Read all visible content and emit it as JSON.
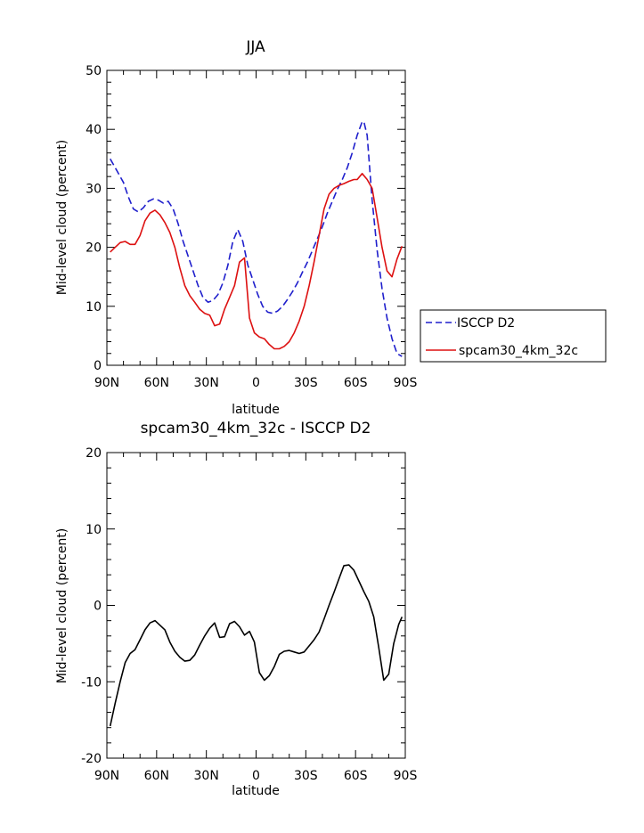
{
  "chart_data": [
    {
      "type": "line",
      "title": "JJA",
      "xlabel": "latitude",
      "ylabel": "Mid-level cloud (percent)",
      "xlim": [
        90,
        -90
      ],
      "ylim": [
        0,
        50
      ],
      "xticks": [
        {
          "value": 90,
          "label": "90N"
        },
        {
          "value": 60,
          "label": "60N"
        },
        {
          "value": 30,
          "label": "30N"
        },
        {
          "value": 0,
          "label": "0"
        },
        {
          "value": -30,
          "label": "30S"
        },
        {
          "value": -60,
          "label": "60S"
        },
        {
          "value": -90,
          "label": "90S"
        }
      ],
      "yticks": [
        0,
        10,
        20,
        30,
        40,
        50
      ],
      "grid": false,
      "legend": "outside-right",
      "series": [
        {
          "name": "ISCCP D2",
          "color": "#1f1fcc",
          "dash": true,
          "x": [
            88,
            84,
            80,
            77,
            74,
            71,
            68,
            65,
            62,
            59,
            56,
            53,
            50,
            47,
            44,
            41,
            38,
            35,
            32,
            29,
            26,
            23,
            20,
            17,
            14,
            11,
            8,
            5,
            2,
            -1,
            -4,
            -7,
            -10,
            -13,
            -16,
            -19,
            -22,
            -25,
            -28,
            -31,
            -34,
            -37,
            -40,
            -43,
            -46,
            -49,
            -52,
            -55,
            -58,
            -61,
            -64,
            -65,
            -67,
            -70,
            -73,
            -76,
            -79,
            -82,
            -85,
            -88
          ],
          "y": [
            35,
            33,
            31,
            28.5,
            26.5,
            26,
            26.7,
            27.8,
            28.2,
            28,
            27.5,
            27.8,
            26.5,
            24,
            21,
            18.5,
            16,
            13.5,
            11.5,
            10.7,
            11,
            12,
            14,
            17,
            21,
            23,
            21,
            17,
            14.5,
            12,
            10,
            9,
            8.8,
            9.2,
            10,
            11.2,
            12.5,
            14,
            15.8,
            17.5,
            19.5,
            21.5,
            23.5,
            25.8,
            27.8,
            29.8,
            31.5,
            33.5,
            36,
            39,
            41.3,
            41.3,
            39,
            28,
            19.5,
            13,
            8,
            4.5,
            2,
            1.5
          ]
        },
        {
          "name": "spcam30_4km_32c",
          "color": "#dd1111",
          "dash": false,
          "x": [
            88,
            85,
            82,
            79,
            76,
            73,
            70,
            67,
            64,
            61,
            58,
            55,
            52,
            49,
            46,
            43,
            40,
            37,
            34,
            31,
            28,
            25,
            22,
            19,
            16,
            13,
            10,
            7,
            4,
            1,
            -2,
            -5,
            -8,
            -11,
            -14,
            -17,
            -20,
            -23,
            -26,
            -29,
            -32,
            -35,
            -38,
            -41,
            -44,
            -47,
            -50,
            -53,
            -56,
            -59,
            -61,
            -64,
            -67,
            -70,
            -73,
            -76,
            -79,
            -82,
            -85,
            -88
          ],
          "y": [
            19.2,
            20,
            20.8,
            21,
            20.5,
            20.5,
            22,
            24.5,
            25.8,
            26.3,
            25.5,
            24.2,
            22.5,
            20,
            16.5,
            13.5,
            11.8,
            10.7,
            9.5,
            8.8,
            8.5,
            6.7,
            7,
            9.5,
            11.5,
            13.5,
            17.5,
            18.2,
            8,
            5.5,
            4.8,
            4.5,
            3.5,
            2.8,
            2.8,
            3.2,
            4,
            5.5,
            7.5,
            10,
            13.5,
            17.5,
            22,
            26.5,
            29,
            30,
            30.5,
            30.8,
            31.2,
            31.5,
            31.5,
            32.5,
            31.5,
            30,
            25,
            20,
            16,
            15,
            18,
            20.2
          ]
        }
      ]
    },
    {
      "type": "line",
      "title": "spcam30_4km_32c - ISCCP D2",
      "xlabel": "latitude",
      "ylabel": "Mid-level cloud (percent)",
      "xlim": [
        90,
        -90
      ],
      "ylim": [
        -20,
        20
      ],
      "xticks": [
        {
          "value": 90,
          "label": "90N"
        },
        {
          "value": 60,
          "label": "60N"
        },
        {
          "value": 30,
          "label": "30N"
        },
        {
          "value": 0,
          "label": "0"
        },
        {
          "value": -30,
          "label": "30S"
        },
        {
          "value": -60,
          "label": "60S"
        },
        {
          "value": -90,
          "label": "90S"
        }
      ],
      "yticks": [
        -20,
        -10,
        0,
        10,
        20
      ],
      "grid": false,
      "series": [
        {
          "color": "#000000",
          "dash": false,
          "x": [
            88,
            85,
            82,
            79,
            76,
            73,
            70,
            67,
            64,
            61,
            58,
            55,
            52,
            49,
            46,
            43,
            40,
            37,
            34,
            31,
            28,
            25,
            22,
            19,
            16,
            13,
            10,
            7,
            4,
            1,
            -2,
            -5,
            -8,
            -11,
            -14,
            -17,
            -20,
            -23,
            -26,
            -29,
            -32,
            -35,
            -38,
            -41,
            -44,
            -47,
            -50,
            -53,
            -56,
            -59,
            -62,
            -65,
            -68,
            -71,
            -74,
            -77,
            -80,
            -83,
            -86,
            -88
          ],
          "y": [
            -15.8,
            -12.8,
            -10,
            -7.5,
            -6.3,
            -5.8,
            -4.5,
            -3.2,
            -2.3,
            -2,
            -2.6,
            -3.2,
            -4.8,
            -6,
            -6.8,
            -7.3,
            -7.2,
            -6.5,
            -5.2,
            -4,
            -3,
            -2.3,
            -4.2,
            -4.1,
            -2.4,
            -2.1,
            -2.8,
            -3.9,
            -3.4,
            -4.8,
            -8.8,
            -9.8,
            -9.2,
            -8,
            -6.4,
            -6,
            -5.9,
            -6.1,
            -6.3,
            -6.1,
            -5.3,
            -4.5,
            -3.5,
            -1.8,
            0,
            1.7,
            3.5,
            5.2,
            5.3,
            4.6,
            3.2,
            1.8,
            0.5,
            -1.5,
            -5.5,
            -9.8,
            -9,
            -5,
            -2.5,
            -1.5
          ]
        }
      ]
    }
  ]
}
